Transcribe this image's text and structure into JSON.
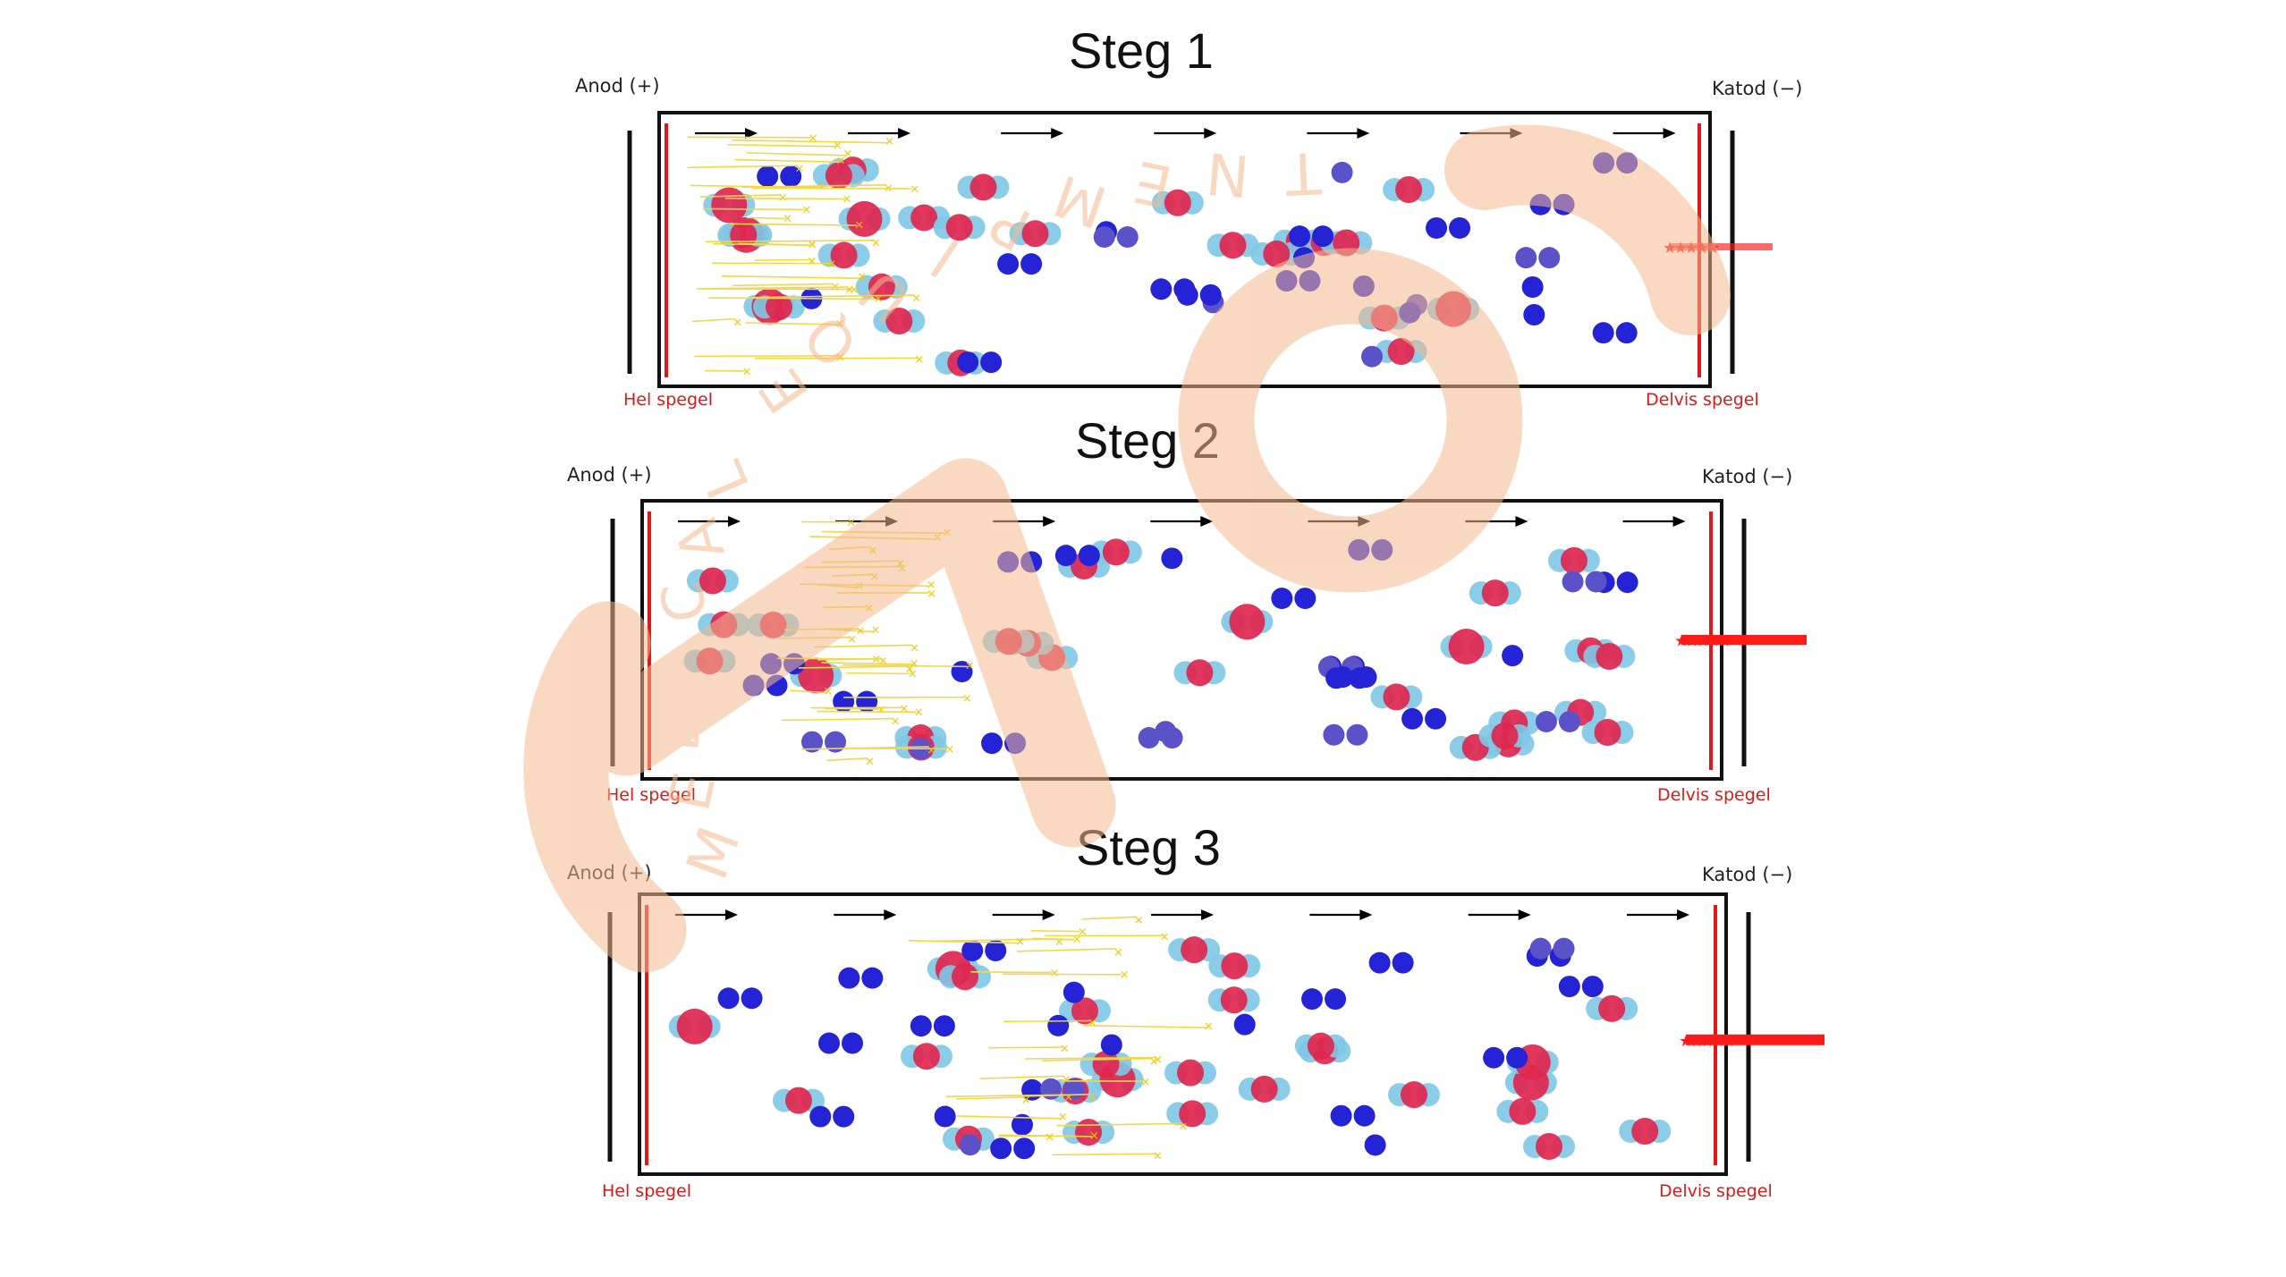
{
  "colors": {
    "frame": "#111111",
    "mirror": "#e01818",
    "arrow": "#000000",
    "molecule_core": "#e0264f",
    "molecule_shell": "#7ec8e6",
    "ion": "#2424d6",
    "ion_light": "#5b52c9",
    "photon_trail": "#f3d64a",
    "photon_marker": "#f0c800",
    "laser": "#ff1a1a",
    "watermark": "#f5b98f"
  },
  "panels": [
    {
      "title": "Steg 1",
      "anode_label": "Anod (+)",
      "cathode_label": "Katod (−)",
      "full_mirror_label": "Hel spegel",
      "partial_mirror_label": "Delvis spegel"
    },
    {
      "title": "Steg 2",
      "anode_label": "Anod (+)",
      "cathode_label": "Katod (−)",
      "full_mirror_label": "Hel spegel",
      "partial_mirror_label": "Delvis spegel"
    },
    {
      "title": "Steg 3",
      "anode_label": "Anod (+)",
      "cathode_label": "Katod (−)",
      "full_mirror_label": "Hel spegel",
      "partial_mirror_label": "Delvis spegel"
    }
  ],
  "watermark": {
    "brand_text": "MEDICAL EQUIPMENT",
    "logo_icon": "circular-brand-logo"
  }
}
